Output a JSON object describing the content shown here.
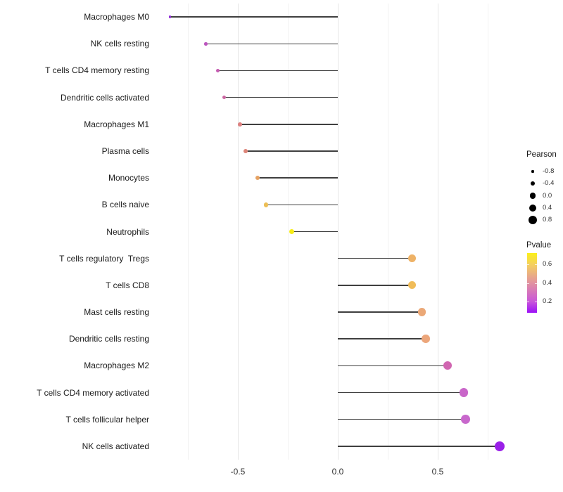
{
  "chart_data": {
    "type": "lollipop",
    "title": "",
    "xlabel": "",
    "ylabel": "",
    "grid": "vertical-only",
    "legend_position": "right",
    "x_axis": {
      "tick_labels": [
        "-0.5",
        "0.0",
        "0.5"
      ],
      "tick_values": [
        -0.5,
        0.0,
        0.5
      ],
      "minor_grid_values": [
        -0.75,
        -0.25,
        0.25,
        0.75
      ],
      "xlim": [
        -0.92,
        0.89
      ]
    },
    "points": [
      {
        "label": "Macrophages M0",
        "pearson": -0.84,
        "pvalue_approx": 0.12,
        "color": "#8F2BD8",
        "radius": 1.7
      },
      {
        "label": "NK cells resting",
        "pearson": -0.66,
        "pvalue_approx": 0.26,
        "color": "#BC55BE",
        "radius": 2.3
      },
      {
        "label": "T cells CD4 memory resting",
        "pearson": -0.6,
        "pvalue_approx": 0.28,
        "color": "#C55CB1",
        "radius": 2.5
      },
      {
        "label": "Dendritic cells activated",
        "pearson": -0.57,
        "pvalue_approx": 0.31,
        "color": "#CB67A2",
        "radius": 2.6
      },
      {
        "label": "Macrophages M1",
        "pearson": -0.49,
        "pvalue_approx": 0.4,
        "color": "#DD8180",
        "radius": 2.8
      },
      {
        "label": "Plasma cells",
        "pearson": -0.46,
        "pvalue_approx": 0.41,
        "color": "#DD8478",
        "radius": 2.9
      },
      {
        "label": "Monocytes",
        "pearson": -0.4,
        "pvalue_approx": 0.48,
        "color": "#E6A263",
        "radius": 3.1
      },
      {
        "label": "B cells naive",
        "pearson": -0.36,
        "pvalue_approx": 0.55,
        "color": "#ECBE55",
        "radius": 3.2
      },
      {
        "label": "Neutrophils",
        "pearson": -0.23,
        "pvalue_approx": 0.7,
        "color": "#F7EC16",
        "radius": 3.7
      },
      {
        "label": "T cells regulatory  Tregs",
        "pearson": 0.37,
        "pvalue_approx": 0.52,
        "color": "#EEB266",
        "radius": 5.5
      },
      {
        "label": "T cells CD8",
        "pearson": 0.37,
        "pvalue_approx": 0.55,
        "color": "#F0BC58",
        "radius": 5.5
      },
      {
        "label": "Mast cells resting",
        "pearson": 0.42,
        "pvalue_approx": 0.5,
        "color": "#EBA877",
        "radius": 5.7
      },
      {
        "label": "Dendritic cells resting",
        "pearson": 0.44,
        "pvalue_approx": 0.49,
        "color": "#ECA67B",
        "radius": 5.8
      },
      {
        "label": "Macrophages M2",
        "pearson": 0.55,
        "pvalue_approx": 0.3,
        "color": "#D166B1",
        "radius": 6.1
      },
      {
        "label": "T cells CD4 memory activated",
        "pearson": 0.63,
        "pvalue_approx": 0.24,
        "color": "#C966C9",
        "radius": 6.4
      },
      {
        "label": "T cells follicular helper",
        "pearson": 0.64,
        "pvalue_approx": 0.23,
        "color": "#C868CC",
        "radius": 6.4
      },
      {
        "label": "NK cells activated",
        "pearson": 0.81,
        "pvalue_approx": 0.1,
        "color": "#9A20E8",
        "radius": 7.0
      }
    ],
    "size_legend": {
      "title": "Pearson",
      "entries": [
        {
          "label": "-0.8",
          "radius": 1.6
        },
        {
          "label": "-0.4",
          "radius": 3.2
        },
        {
          "label": "0.0",
          "radius": 4.3
        },
        {
          "label": "0.4",
          "radius": 5.2
        },
        {
          "label": "0.8",
          "radius": 6.0
        }
      ]
    },
    "color_legend": {
      "title": "Pvalue",
      "tick_labels": [
        "0.6",
        "0.4",
        "0.2"
      ],
      "gradient": [
        "#FBF019",
        "#F4D05F",
        "#E2949E",
        "#C957D9",
        "#9B11F7"
      ],
      "range_top": 0.72,
      "range_bottom": 0.08
    }
  },
  "colors": {
    "stem": "#3f3f3f",
    "grid_major": "#e6e6e6",
    "grid_minor": "#f2f2f2",
    "axis_text": "#303030",
    "label_text": "#1a1a1a"
  }
}
